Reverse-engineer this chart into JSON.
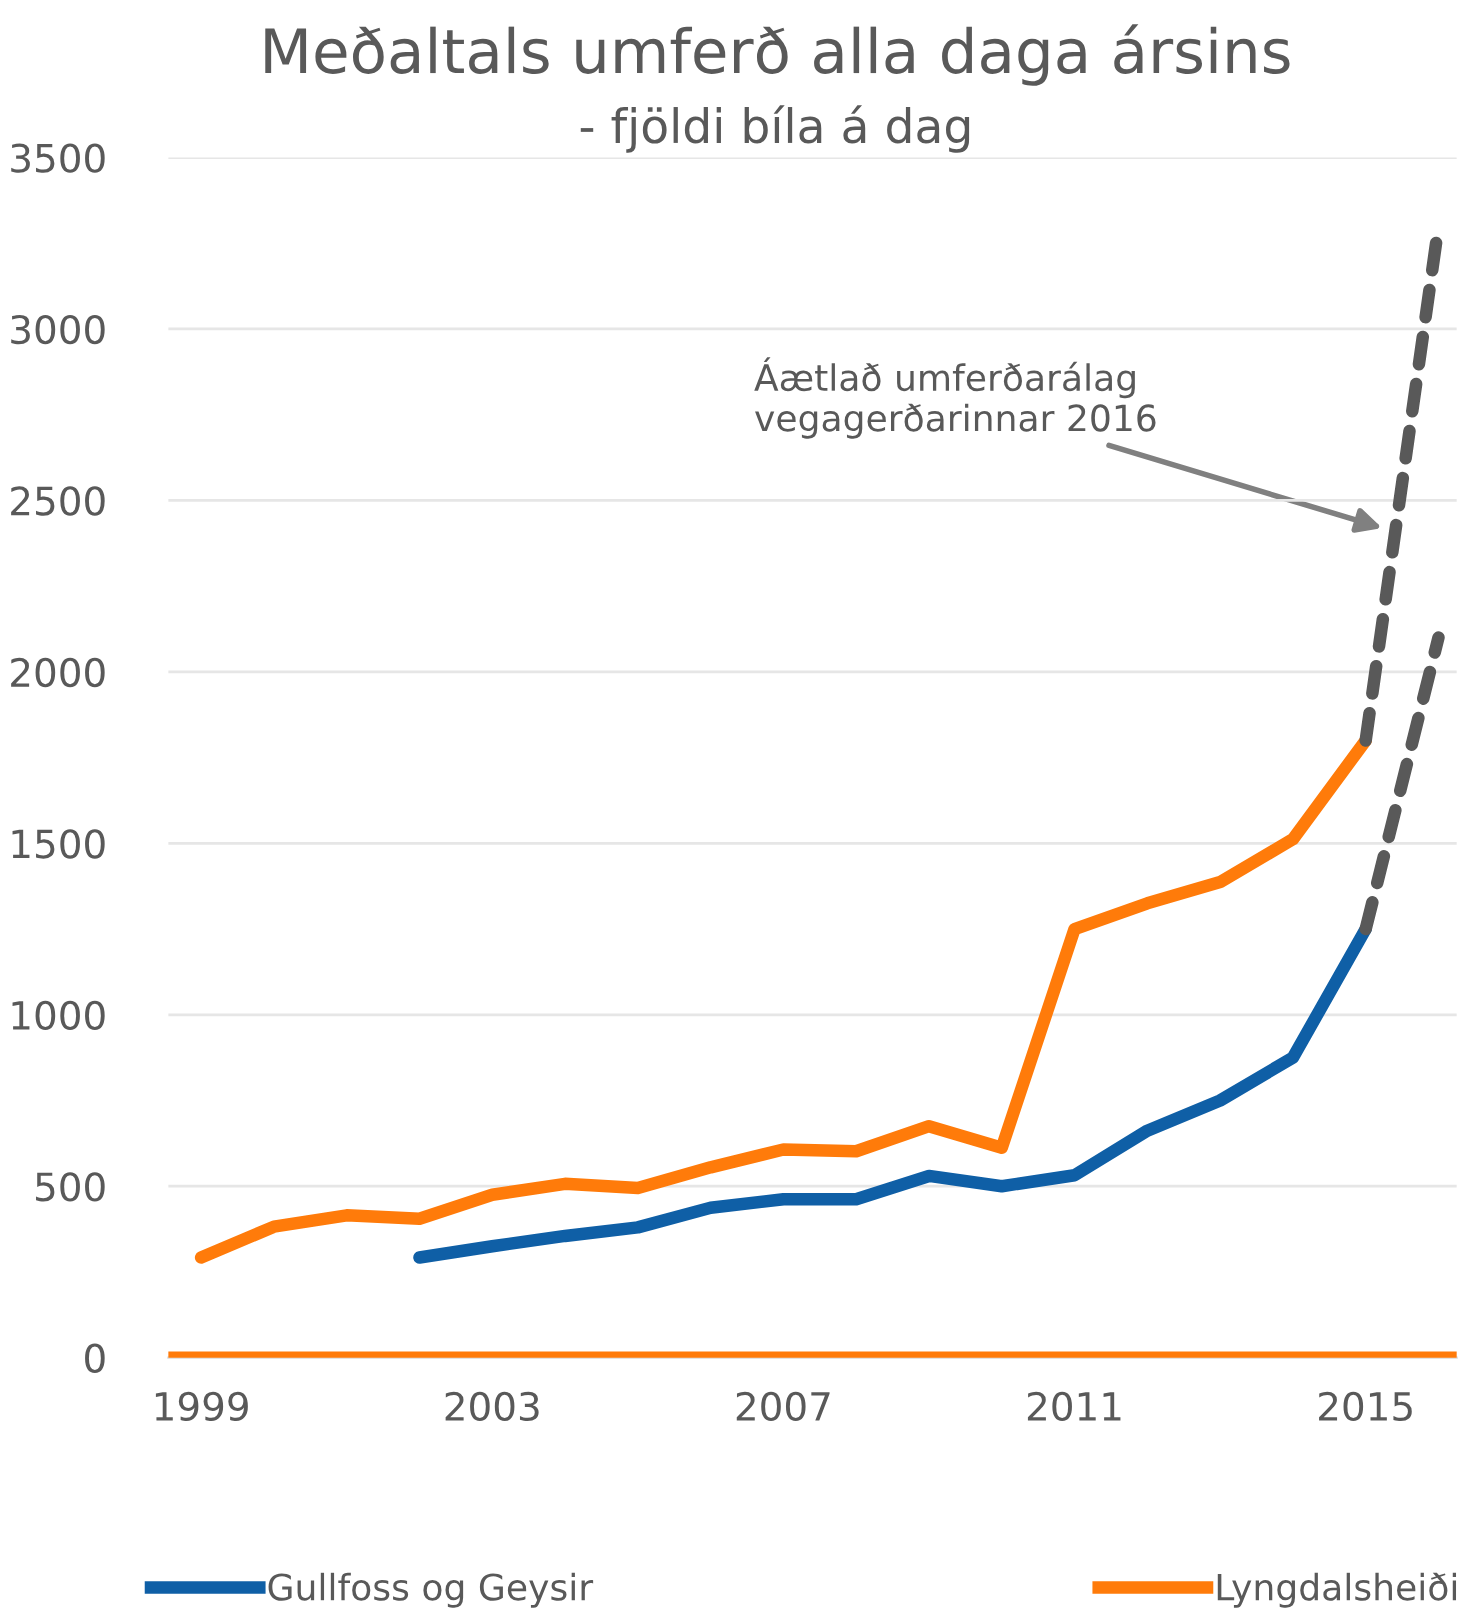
{
  "chart_data": {
    "type": "line",
    "title": "Meðaltals umferð alla daga ársins",
    "subtitle": "- fjöldi bíla á dag",
    "categories": [
      "1999",
      null,
      null,
      null,
      "2003",
      null,
      null,
      null,
      "2007",
      null,
      null,
      null,
      "2011",
      null,
      null,
      null,
      "2015",
      null
    ],
    "series": [
      {
        "name": "Gullfoss og Geysir",
        "color": "#0f5fa6",
        "values": [
          null,
          null,
          null,
          292,
          325,
          355,
          380,
          437,
          462,
          462,
          530,
          500,
          532,
          662,
          750,
          875,
          1250,
          null
        ]
      },
      {
        "name": "Lyngdalsheiði",
        "color": "#ff7b0a",
        "values": [
          292,
          382,
          415,
          405,
          475,
          507,
          495,
          555,
          607,
          602,
          675,
          612,
          1250,
          1325,
          1387,
          1512,
          1800,
          null
        ]
      },
      {
        "color": "#595959",
        "line_style": "dashed",
        "values": [
          null,
          null,
          null,
          null,
          null,
          null,
          null,
          null,
          null,
          null,
          null,
          null,
          null,
          null,
          null,
          null,
          1250,
          2100
        ]
      },
      {
        "color": "#595959",
        "line_style": "dashed",
        "values": [
          null,
          null,
          null,
          null,
          null,
          null,
          null,
          null,
          null,
          null,
          null,
          null,
          null,
          null,
          null,
          null,
          1800,
          3300
        ]
      }
    ],
    "ylim": [
      0,
      3500
    ],
    "yticks": [
      0,
      500,
      1000,
      1500,
      2000,
      2500,
      3000,
      3500
    ],
    "ref_lines": [
      {
        "axis": "y",
        "value": 0,
        "color": "#ff7b0a"
      }
    ],
    "annotations": [
      "Áætlað umferðarálag vegagerðarinnar 2016"
    ],
    "grid": "y",
    "legend": "bottom",
    "line_style": "solid"
  }
}
